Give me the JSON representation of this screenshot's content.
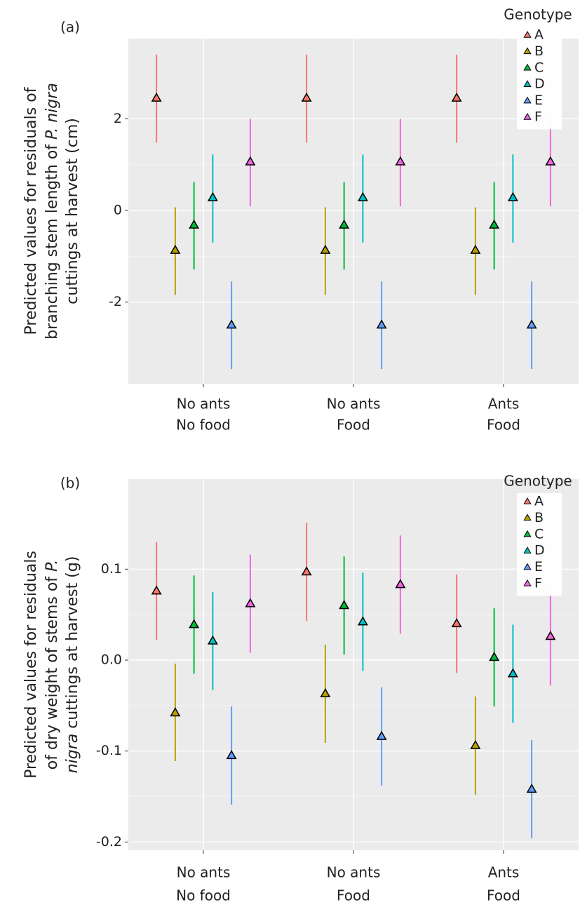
{
  "chart_data": [
    {
      "type": "pointrange",
      "panel_label": "(a)",
      "ylabel": [
        [
          {
            "text": "Predicted values for residuals of",
            "italic": false
          }
        ],
        [
          {
            "text": "branching stem length of ",
            "italic": false
          },
          {
            "text": "P. nigra",
            "italic": true
          }
        ],
        [
          {
            "text": "cuttings at harvest (cm)",
            "italic": false
          }
        ]
      ],
      "categories": [
        [
          "No ants",
          "No food"
        ],
        [
          "No ants",
          "Food"
        ],
        [
          "Ants",
          "Food"
        ]
      ],
      "ylim": [
        -3.78,
        3.75
      ],
      "yticks": [
        -2,
        0,
        2
      ],
      "grid": true,
      "legend_title": "Genotype",
      "legend_position": "top-right",
      "series": [
        {
          "name": "A",
          "color": "#F8766D",
          "values": [
            2.45,
            2.45,
            2.45
          ],
          "lower": [
            1.48,
            1.48,
            1.48
          ],
          "upper": [
            3.4,
            3.4,
            3.4
          ]
        },
        {
          "name": "B",
          "color": "#B79F00",
          "values": [
            -0.87,
            -0.87,
            -0.87
          ],
          "lower": [
            -1.84,
            -1.84,
            -1.84
          ],
          "upper": [
            0.07,
            0.07,
            0.07
          ]
        },
        {
          "name": "C",
          "color": "#00BA38",
          "values": [
            -0.32,
            -0.32,
            -0.32
          ],
          "lower": [
            -1.29,
            -1.29,
            -1.29
          ],
          "upper": [
            0.62,
            0.62,
            0.62
          ]
        },
        {
          "name": "D",
          "color": "#00BFC4",
          "values": [
            0.28,
            0.28,
            0.28
          ],
          "lower": [
            -0.7,
            -0.7,
            -0.7
          ],
          "upper": [
            1.22,
            1.22,
            1.22
          ]
        },
        {
          "name": "E",
          "color": "#619CFF",
          "values": [
            -2.5,
            -2.5,
            -2.5
          ],
          "lower": [
            -3.46,
            -3.46,
            -3.46
          ],
          "upper": [
            -1.55,
            -1.55,
            -1.55
          ]
        },
        {
          "name": "F",
          "color": "#F564E3",
          "values": [
            1.06,
            1.06,
            1.06
          ],
          "lower": [
            0.09,
            0.09,
            0.09
          ],
          "upper": [
            2.0,
            2.0,
            2.0
          ]
        }
      ]
    },
    {
      "type": "pointrange",
      "panel_label": "(b)",
      "ylabel": [
        [
          {
            "text": "Predicted values for residuals",
            "italic": false
          }
        ],
        [
          {
            "text": "of dry weight of stems of ",
            "italic": false
          },
          {
            "text": "P.",
            "italic": true
          }
        ],
        [
          {
            "text": "nigra",
            "italic": true
          },
          {
            "text": " cuttings at harvest (g)",
            "italic": false
          }
        ]
      ],
      "categories": [
        [
          "No ants",
          "No food"
        ],
        [
          "No ants",
          "Food"
        ],
        [
          "Ants",
          "Food"
        ]
      ],
      "ylim": [
        -0.209,
        0.199
      ],
      "yticks": [
        -0.2,
        -0.1,
        {
          "value": 0,
          "label": "0.0"
        },
        0.1
      ],
      "grid": true,
      "legend_title": "Genotype",
      "legend_position": "top-right",
      "series": [
        {
          "name": "A",
          "color": "#F8766D",
          "values": [
            0.076,
            0.097,
            0.04
          ],
          "lower": [
            0.022,
            0.043,
            -0.014
          ],
          "upper": [
            0.13,
            0.151,
            0.094
          ]
        },
        {
          "name": "B",
          "color": "#B79F00",
          "values": [
            -0.058,
            -0.037,
            -0.094
          ],
          "lower": [
            -0.111,
            -0.091,
            -0.148
          ],
          "upper": [
            -0.004,
            0.017,
            -0.04
          ]
        },
        {
          "name": "C",
          "color": "#00BA38",
          "values": [
            0.039,
            0.06,
            0.003
          ],
          "lower": [
            -0.015,
            0.006,
            -0.051
          ],
          "upper": [
            0.093,
            0.114,
            0.057
          ]
        },
        {
          "name": "D",
          "color": "#00BFC4",
          "values": [
            0.021,
            0.042,
            -0.015
          ],
          "lower": [
            -0.033,
            -0.012,
            -0.069
          ],
          "upper": [
            0.075,
            0.096,
            0.039
          ]
        },
        {
          "name": "E",
          "color": "#619CFF",
          "values": [
            -0.105,
            -0.084,
            -0.142
          ],
          "lower": [
            -0.159,
            -0.138,
            -0.196
          ],
          "upper": [
            -0.051,
            -0.03,
            -0.088
          ]
        },
        {
          "name": "F",
          "color": "#F564E3",
          "values": [
            0.062,
            0.083,
            0.026
          ],
          "lower": [
            0.008,
            0.029,
            -0.028
          ],
          "upper": [
            0.116,
            0.137,
            0.08
          ]
        }
      ]
    }
  ]
}
